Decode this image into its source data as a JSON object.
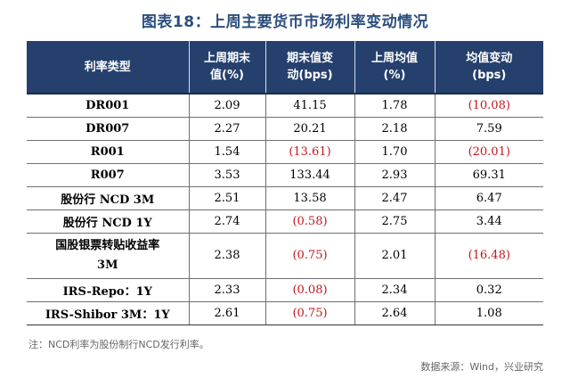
{
  "title": "图表18：上周主要货币市场利率变动情况",
  "table": {
    "headers": [
      "利率类型",
      "上周期末值(%)",
      "期末值变动(bps)",
      "上周均值(%)",
      "均值变动(bps)"
    ],
    "header_lines": [
      [
        "利率类型",
        ""
      ],
      [
        "上周期末",
        "值(%)"
      ],
      [
        "期末值变",
        "动(bps)"
      ],
      [
        "上周均值",
        "(%)"
      ],
      [
        "均值变动",
        "(bps)"
      ]
    ],
    "rows": [
      {
        "name": "DR001",
        "end_value": "2.09",
        "end_change": "41.15",
        "end_change_negative": false,
        "avg_value": "1.78",
        "avg_change": "(10.08)",
        "avg_change_negative": true
      },
      {
        "name": "DR007",
        "end_value": "2.27",
        "end_change": "20.21",
        "end_change_negative": false,
        "avg_value": "2.18",
        "avg_change": "7.59",
        "avg_change_negative": false
      },
      {
        "name": "R001",
        "end_value": "1.54",
        "end_change": "(13.61)",
        "end_change_negative": true,
        "avg_value": "1.70",
        "avg_change": "(20.01)",
        "avg_change_negative": true
      },
      {
        "name": "R007",
        "end_value": "3.53",
        "end_change": "133.44",
        "end_change_negative": false,
        "avg_value": "2.93",
        "avg_change": "69.31",
        "avg_change_negative": false
      },
      {
        "name": "股份行 NCD 3M",
        "end_value": "2.51",
        "end_change": "13.58",
        "end_change_negative": false,
        "avg_value": "2.47",
        "avg_change": "6.47",
        "avg_change_negative": false
      },
      {
        "name": "股份行 NCD 1Y",
        "end_value": "2.74",
        "end_change": "(0.58)",
        "end_change_negative": true,
        "avg_value": "2.75",
        "avg_change": "3.44",
        "avg_change_negative": false
      },
      {
        "name": "国股银票转贴收益率\n3M",
        "end_value": "2.38",
        "end_change": "(0.75)",
        "end_change_negative": true,
        "avg_value": "2.01",
        "avg_change": "(16.48)",
        "avg_change_negative": true,
        "tall": true
      },
      {
        "name": "IRS-Repo：1Y",
        "end_value": "2.33",
        "end_change": "(0.08)",
        "end_change_negative": true,
        "avg_value": "2.34",
        "avg_change": "0.32",
        "avg_change_negative": false
      },
      {
        "name": "IRS-Shibor 3M：1Y",
        "end_value": "2.61",
        "end_change": "(0.75)",
        "end_change_negative": true,
        "avg_value": "2.64",
        "avg_change": "1.08",
        "avg_change_negative": false
      }
    ]
  },
  "note": "注：NCD利率为股份制行NCD发行利率。",
  "source": "数据来源：Wind，兴业研究",
  "colors": {
    "title": "#2c4f7e",
    "header_bg": "#25406d",
    "negative": "#c5161d"
  }
}
